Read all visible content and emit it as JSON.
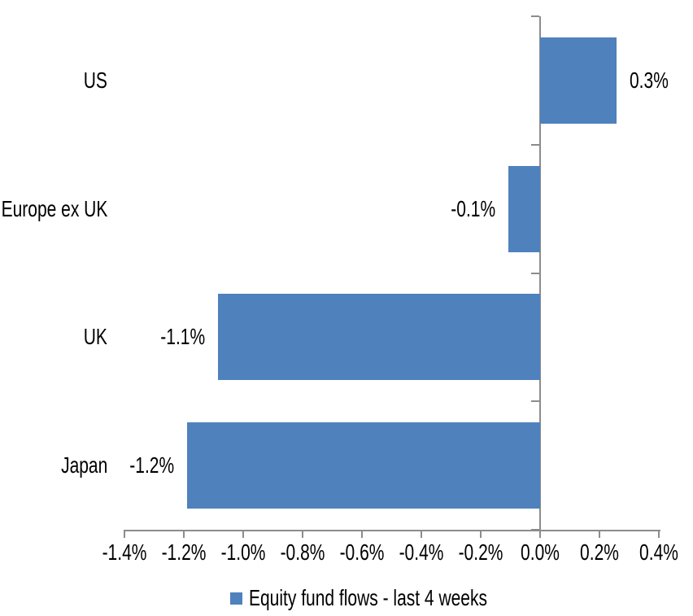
{
  "chart_data": {
    "type": "bar",
    "orientation": "horizontal",
    "categories": [
      "US",
      "Europe ex UK",
      "UK",
      "Japan"
    ],
    "series": [
      {
        "name": "Equity fund flows - last 4 weeks",
        "values": [
          0.3,
          -0.1,
          -1.1,
          -1.2
        ],
        "value_labels": [
          "0.3%",
          "-0.1%",
          "-1.1%",
          "-1.2%"
        ],
        "values_as_drawn": [
          0.257,
          -0.107,
          -1.085,
          -1.19
        ]
      }
    ],
    "xlim": [
      -1.4,
      0.4
    ],
    "x_tick_interval": 0.2,
    "x_tick_labels": [
      "-1.4%",
      "-1.2%",
      "-1.0%",
      "-0.8%",
      "-0.6%",
      "-0.4%",
      "-0.2%",
      "0.0%",
      "0.2%",
      "0.4%"
    ],
    "grid": false,
    "axis_cross_at": 0.0,
    "legend": {
      "position": "bottom-center",
      "label": "Equity fund flows - last 4 weeks"
    },
    "colors": {
      "bar": "#4F81BD",
      "axis": "#8C8C8C",
      "text": "#000000",
      "background": "#FFFFFF"
    }
  }
}
